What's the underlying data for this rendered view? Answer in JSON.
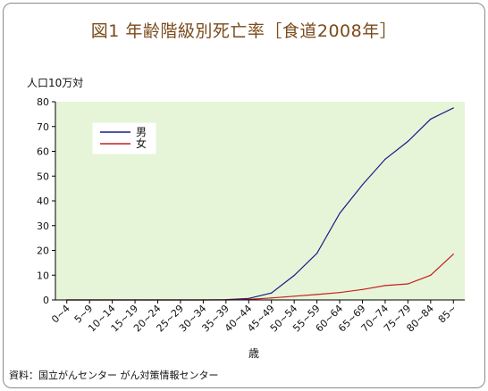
{
  "chart_data": {
    "type": "line",
    "title": "図1 年齢階級別死亡率［食道2008年］",
    "ylabel": "人口10万対",
    "xlabel": "歳",
    "source": "資料：国立がんセンター がん対策情報センター",
    "categories": [
      "0~4",
      "5~9",
      "10~14",
      "15~19",
      "20~24",
      "25~29",
      "30~34",
      "35~39",
      "40~44",
      "45~49",
      "50~54",
      "55~59",
      "60~64",
      "65~69",
      "70~74",
      "75~79",
      "80~84",
      "85~"
    ],
    "ylim": [
      0,
      80
    ],
    "yticks": [
      0,
      10,
      20,
      30,
      40,
      50,
      60,
      70,
      80
    ],
    "grid": false,
    "legend_position": "top-left",
    "background_color": "#e6f5d8",
    "series": [
      {
        "name": "男",
        "color": "#1a1a8c",
        "values": [
          0,
          0,
          0,
          0,
          0,
          0,
          0,
          0.1,
          0.6,
          2.8,
          9.9,
          18.8,
          35,
          46.5,
          56.8,
          64,
          73,
          77.5
        ]
      },
      {
        "name": "女",
        "color": "#c81e1e",
        "values": [
          0,
          0,
          0,
          0,
          0,
          0,
          0,
          0,
          0.2,
          0.8,
          1.5,
          2.2,
          3,
          4.2,
          5.8,
          6.5,
          10,
          18.5
        ]
      }
    ]
  }
}
